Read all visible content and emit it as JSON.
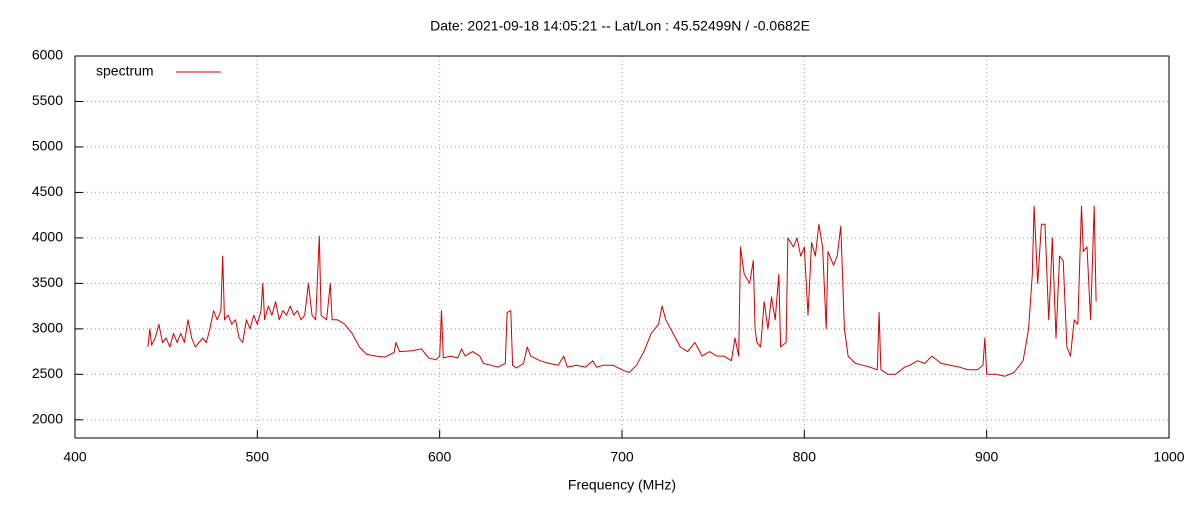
{
  "chart_data": {
    "type": "line",
    "title": "Date: 2021-09-18 14:05:21  --  Lat/Lon : 45.52499N / -0.0682E",
    "x_label": "Frequency (MHz)",
    "xlim": [
      400,
      1000
    ],
    "xticks": [
      400,
      500,
      600,
      700,
      800,
      900,
      1000
    ],
    "ylim": [
      1800,
      6000
    ],
    "yticks": [
      2000,
      2500,
      3000,
      3500,
      4000,
      4500,
      5000,
      5500,
      6000
    ],
    "grid": true,
    "legend": "top-left",
    "x": [
      440,
      441,
      442,
      444,
      446,
      448,
      450,
      452,
      454,
      456,
      458,
      460,
      462,
      464,
      466,
      468,
      470,
      472,
      474,
      476,
      478,
      480,
      481,
      482,
      484,
      486,
      488,
      490,
      492,
      494,
      496,
      498,
      500,
      502,
      503,
      504,
      506,
      508,
      510,
      512,
      514,
      516,
      518,
      520,
      522,
      524,
      526,
      528,
      530,
      532,
      534,
      535,
      538,
      540,
      541,
      544,
      548,
      552,
      556,
      560,
      565,
      570,
      575,
      576,
      578,
      585,
      590,
      594,
      598,
      600,
      601,
      602,
      606,
      610,
      612,
      614,
      618,
      622,
      624,
      628,
      632,
      634,
      636,
      637,
      639,
      640,
      642,
      646,
      648,
      650,
      655,
      660,
      665,
      668,
      670,
      675,
      680,
      684,
      686,
      690,
      695,
      700,
      704,
      708,
      712,
      716,
      720,
      722,
      724,
      728,
      732,
      736,
      740,
      744,
      748,
      752,
      756,
      760,
      762,
      764,
      765,
      767,
      770,
      772,
      773,
      774,
      776,
      778,
      780,
      782,
      784,
      786,
      787,
      790,
      791,
      794,
      796,
      798,
      800,
      802,
      804,
      806,
      808,
      810,
      812,
      813,
      816,
      818,
      820,
      822,
      824,
      828,
      832,
      836,
      840,
      841,
      842,
      846,
      850,
      855,
      858,
      862,
      866,
      870,
      875,
      880,
      885,
      890,
      895,
      898,
      899,
      900,
      905,
      910,
      915,
      920,
      923,
      925,
      926,
      928,
      930,
      932,
      934,
      935,
      936,
      938,
      940,
      942,
      944,
      946,
      948,
      950,
      952,
      953,
      955,
      957,
      959,
      960
    ],
    "series": [
      {
        "name": "spectrum",
        "color": "#d40000",
        "values": [
          2800,
          3000,
          2820,
          2900,
          3050,
          2850,
          2900,
          2800,
          2950,
          2850,
          2950,
          2850,
          3100,
          2900,
          2800,
          2850,
          2900,
          2850,
          3000,
          3200,
          3100,
          3200,
          3800,
          3100,
          3150,
          3050,
          3100,
          2900,
          2850,
          3100,
          3000,
          3150,
          3050,
          3200,
          3500,
          3100,
          3250,
          3150,
          3300,
          3100,
          3200,
          3150,
          3250,
          3150,
          3200,
          3100,
          3150,
          3500,
          3150,
          3100,
          4020,
          3150,
          3100,
          3500,
          3100,
          3100,
          3050,
          2950,
          2800,
          2720,
          2700,
          2690,
          2740,
          2850,
          2750,
          2760,
          2780,
          2680,
          2660,
          2700,
          3200,
          2680,
          2700,
          2680,
          2780,
          2700,
          2750,
          2700,
          2620,
          2600,
          2580,
          2600,
          2620,
          3180,
          3200,
          2600,
          2570,
          2620,
          2800,
          2700,
          2650,
          2620,
          2600,
          2700,
          2580,
          2600,
          2580,
          2650,
          2580,
          2600,
          2600,
          2550,
          2520,
          2600,
          2750,
          2950,
          3050,
          3250,
          3100,
          2950,
          2800,
          2750,
          2850,
          2700,
          2750,
          2700,
          2700,
          2650,
          2900,
          2700,
          3900,
          3600,
          3500,
          3750,
          3000,
          2850,
          2800,
          3300,
          3000,
          3350,
          3100,
          3600,
          2800,
          2850,
          4000,
          3900,
          4000,
          3800,
          3900,
          3150,
          3950,
          3800,
          4150,
          3900,
          3000,
          3850,
          3700,
          3800,
          4130,
          3000,
          2700,
          2620,
          2600,
          2580,
          2550,
          3180,
          2550,
          2500,
          2500,
          2580,
          2600,
          2650,
          2620,
          2700,
          2620,
          2600,
          2580,
          2550,
          2550,
          2600,
          2900,
          2500,
          2500,
          2480,
          2520,
          2650,
          3000,
          3600,
          4350,
          3500,
          4150,
          4150,
          3100,
          3500,
          4000,
          2900,
          3800,
          3750,
          2800,
          2700,
          3100,
          3050,
          4350,
          3850,
          3900,
          3100,
          4350,
          3300
        ]
      }
    ]
  }
}
